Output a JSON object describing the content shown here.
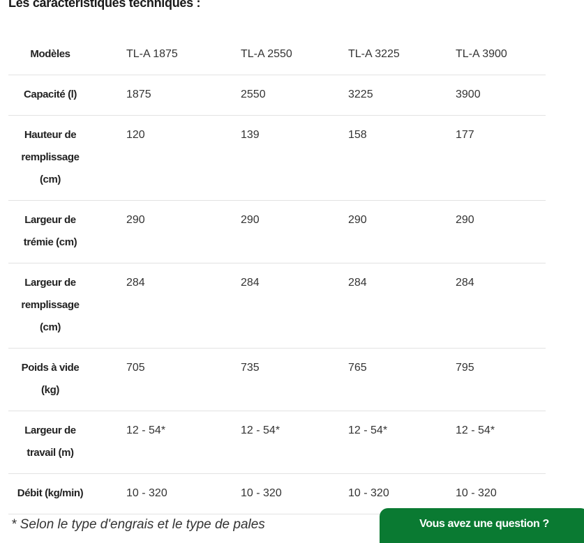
{
  "title": "Les caractéristiques techniques :",
  "table": {
    "rows": [
      {
        "label": [
          "Modèles"
        ],
        "values": [
          "TL-A 1875",
          "TL-A 2550",
          "TL-A 3225",
          "TL-A 3900"
        ]
      },
      {
        "label": [
          "Capacité (l)"
        ],
        "values": [
          "1875",
          "2550",
          "3225",
          "3900"
        ]
      },
      {
        "label": [
          "Hauteur de",
          "remplissage",
          "(cm)"
        ],
        "values": [
          "120",
          "139",
          "158",
          "177"
        ]
      },
      {
        "label": [
          "Largeur de",
          "trémie  (cm)"
        ],
        "values": [
          "290",
          "290",
          "290",
          "290"
        ]
      },
      {
        "label": [
          "Largeur de",
          "remplissage",
          "(cm)"
        ],
        "values": [
          "284",
          "284",
          "284",
          "284"
        ]
      },
      {
        "label": [
          "Poids à vide",
          "(kg)"
        ],
        "values": [
          "705",
          "735",
          "765",
          "795"
        ]
      },
      {
        "label": [
          "Largeur de",
          "travail  (m)"
        ],
        "values": [
          "12 - 54*",
          "12 - 54*",
          "12 - 54*",
          "12 - 54*"
        ]
      },
      {
        "label": [
          "Débit (kg/min)"
        ],
        "values": [
          "10 - 320",
          "10 - 320",
          "10 - 320",
          "10 - 320"
        ]
      }
    ]
  },
  "footnote": "* Selon le type d'engrais et le type de pales",
  "cta_label": "Vous avez une question ?",
  "colors": {
    "cta": "#0a7a32"
  }
}
